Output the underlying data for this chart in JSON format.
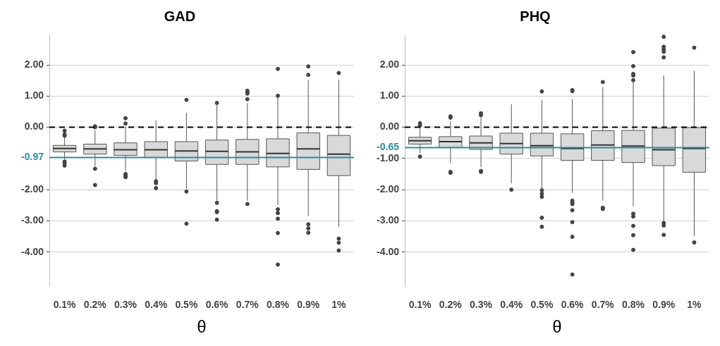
{
  "chart_data": [
    {
      "type": "box",
      "title": "GAD",
      "xlabel": "θ",
      "categories": [
        "0.1%",
        "0.2%",
        "0.3%",
        "0.4%",
        "0.5%",
        "0.6%",
        "0.7%",
        "0.8%",
        "0.9%",
        "1%"
      ],
      "color": "#d9d9d9",
      "grid": "y",
      "ylim": [
        -5.1,
        2.95
      ],
      "yticks": [
        {
          "value": 2,
          "label": "2.00"
        },
        {
          "value": 1,
          "label": "1.00"
        },
        {
          "value": 0,
          "label": "0.00"
        },
        {
          "value": -2,
          "label": "-2.00"
        },
        {
          "value": -3,
          "label": "-3.00"
        },
        {
          "value": -4,
          "label": "-4.00"
        }
      ],
      "ref_lines": [
        {
          "axis": "y",
          "value": 0,
          "color": "#000000",
          "line_style": "dashed"
        },
        {
          "axis": "y",
          "value": -0.97,
          "label": "-0.97",
          "color": "#2a8d9c",
          "line_style": "solid"
        }
      ],
      "boxes": [
        {
          "low": -1.03,
          "q1": -0.79,
          "median": -0.68,
          "q3": -0.58,
          "high": -0.32,
          "outliers": [
            -0.11,
            -0.23,
            -0.27,
            -1.1,
            -1.16,
            -1.23
          ]
        },
        {
          "low": -1.25,
          "q1": -0.86,
          "median": -0.69,
          "q3": -0.54,
          "high": -0.1,
          "outliers": [
            0.03,
            0.0,
            -1.33,
            -1.85
          ]
        },
        {
          "low": -1.4,
          "q1": -0.9,
          "median": -0.72,
          "q3": -0.5,
          "high": 0.03,
          "outliers": [
            0.12,
            0.29,
            -1.5,
            -1.55,
            -1.6
          ]
        },
        {
          "low": -1.68,
          "q1": -0.97,
          "median": -0.72,
          "q3": -0.46,
          "high": 0.22,
          "outliers": [
            -1.73,
            -1.79,
            -1.95
          ]
        },
        {
          "low": -1.97,
          "q1": -1.08,
          "median": -0.76,
          "q3": -0.46,
          "high": 0.47,
          "outliers": [
            0.88,
            -2.06,
            -3.09
          ]
        },
        {
          "low": -2.35,
          "q1": -1.19,
          "median": -0.77,
          "q3": -0.41,
          "high": 0.71,
          "outliers": [
            0.78,
            -2.42,
            -2.69,
            -2.72,
            -2.96
          ]
        },
        {
          "low": -2.35,
          "q1": -1.19,
          "median": -0.79,
          "q3": -0.39,
          "high": 0.77,
          "outliers": [
            0.9,
            1.08,
            1.12,
            1.17,
            -2.46
          ]
        },
        {
          "low": -2.48,
          "q1": -1.27,
          "median": -0.84,
          "q3": -0.37,
          "high": 0.94,
          "outliers": [
            1.01,
            1.87,
            -2.63,
            -2.75,
            -2.93,
            -3.39,
            -4.4
          ]
        },
        {
          "low": -2.84,
          "q1": -1.35,
          "median": -0.69,
          "q3": -0.18,
          "high": 1.52,
          "outliers": [
            1.68,
            1.95,
            -3.11,
            -3.24,
            -3.38
          ]
        },
        {
          "low": -3.19,
          "q1": -1.55,
          "median": -0.86,
          "q3": -0.26,
          "high": 1.52,
          "outliers": [
            1.74,
            -3.57,
            -3.7,
            -3.95
          ]
        }
      ]
    },
    {
      "type": "box",
      "title": "PHQ",
      "xlabel": "θ",
      "categories": [
        "0.1%",
        "0.2%",
        "0.3%",
        "0.4%",
        "0.5%",
        "0.6%",
        "0.7%",
        "0.8%",
        "0.9%",
        "1%"
      ],
      "color": "#d9d9d9",
      "grid": "y",
      "ylim": [
        -5.1,
        2.95
      ],
      "yticks": [
        {
          "value": 2,
          "label": "2.00"
        },
        {
          "value": 1,
          "label": "1.00"
        },
        {
          "value": 0,
          "label": "0.00"
        },
        {
          "value": -1,
          "label": "-1.00"
        },
        {
          "value": -2,
          "label": "-2.00"
        },
        {
          "value": -3,
          "label": "-3.00"
        },
        {
          "value": -4,
          "label": "-4.00"
        }
      ],
      "ref_lines": [
        {
          "axis": "y",
          "value": 0,
          "color": "#000000",
          "line_style": "dashed"
        },
        {
          "axis": "y",
          "value": -0.65,
          "label": "-0.65",
          "color": "#2a8d9c",
          "line_style": "solid"
        }
      ],
      "boxes": [
        {
          "low": -0.84,
          "q1": -0.54,
          "median": -0.43,
          "q3": -0.32,
          "high": 0.03,
          "outliers": [
            0.06,
            0.13,
            -0.94
          ]
        },
        {
          "low": -1.15,
          "q1": -0.65,
          "median": -0.46,
          "q3": -0.3,
          "high": 0.19,
          "outliers": [
            0.31,
            0.35,
            -1.43,
            -1.46
          ]
        },
        {
          "low": -1.28,
          "q1": -0.71,
          "median": -0.5,
          "q3": -0.28,
          "high": 0.33,
          "outliers": [
            0.39,
            0.45,
            -1.4,
            -1.43
          ]
        },
        {
          "low": -1.8,
          "q1": -0.86,
          "median": -0.52,
          "q3": -0.19,
          "high": 0.74,
          "outliers": [
            -2.0
          ]
        },
        {
          "low": -1.98,
          "q1": -0.92,
          "median": -0.59,
          "q3": -0.19,
          "high": 0.88,
          "outliers": [
            1.15,
            -2.02,
            -2.13,
            -2.23,
            -2.9,
            -3.19
          ]
        },
        {
          "low": -2.1,
          "q1": -1.06,
          "median": -0.68,
          "q3": -0.21,
          "high": 0.9,
          "outliers": [
            1.16,
            1.19,
            -2.35,
            -2.42,
            -2.46,
            -2.66,
            -3.04,
            -3.51,
            -4.72
          ]
        },
        {
          "low": -2.35,
          "q1": -1.06,
          "median": -0.57,
          "q3": -0.11,
          "high": 1.29,
          "outliers": [
            1.45,
            -2.58,
            -2.62
          ]
        },
        {
          "low": -2.53,
          "q1": -1.13,
          "median": -0.6,
          "q3": -0.1,
          "high": 1.45,
          "outliers": [
            1.51,
            1.66,
            1.71,
            1.96,
            2.41,
            -2.77,
            -2.86,
            -3.16,
            -3.46,
            -3.93
          ]
        },
        {
          "low": -3.03,
          "q1": -1.23,
          "median": -0.72,
          "q3": -0.03,
          "high": 1.66,
          "outliers": [
            2.24,
            2.42,
            2.5,
            2.58,
            2.9,
            -3.07,
            -3.15,
            -3.45
          ]
        },
        {
          "low": -3.49,
          "q1": -1.44,
          "median": -0.68,
          "q3": -0.01,
          "high": 1.81,
          "outliers": [
            2.55,
            -3.69
          ]
        }
      ]
    }
  ]
}
